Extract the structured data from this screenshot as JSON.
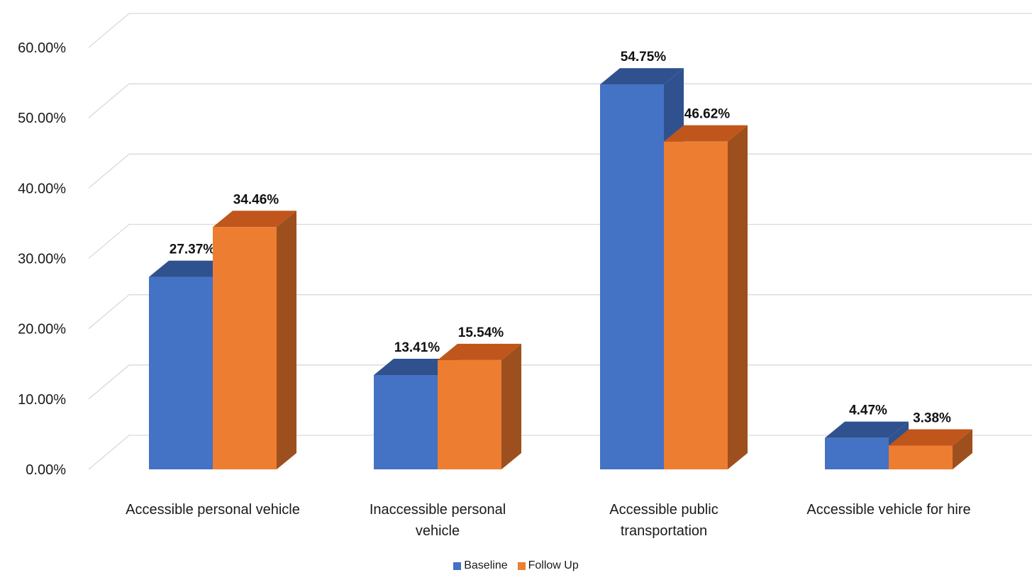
{
  "chart_data": {
    "type": "bar",
    "categories": [
      "Accessible personal vehicle",
      "Inaccessible personal vehicle",
      "Accessible public transportation",
      "Accessible vehicle for hire"
    ],
    "series": [
      {
        "name": "Baseline",
        "values": [
          27.37,
          13.41,
          54.75,
          4.47
        ],
        "labels": [
          "27.37%",
          "13.41%",
          "54.75%",
          "4.47%"
        ],
        "color": "#4472C4",
        "side_color": "#2F528F",
        "top_color": "#2F528F"
      },
      {
        "name": "Follow Up",
        "values": [
          34.46,
          15.54,
          46.62,
          3.38
        ],
        "labels": [
          "34.46%",
          "15.54%",
          "46.62%",
          "3.38%"
        ],
        "color": "#ED7D31",
        "side_color": "#9E4F1E",
        "top_color": "#C0561B"
      }
    ],
    "yticks": [
      "0.00%",
      "10.00%",
      "20.00%",
      "30.00%",
      "40.00%",
      "50.00%",
      "60.00%"
    ],
    "ylim": [
      0,
      60
    ],
    "grid": true,
    "legend_position": "bottom",
    "projection": "3d"
  }
}
